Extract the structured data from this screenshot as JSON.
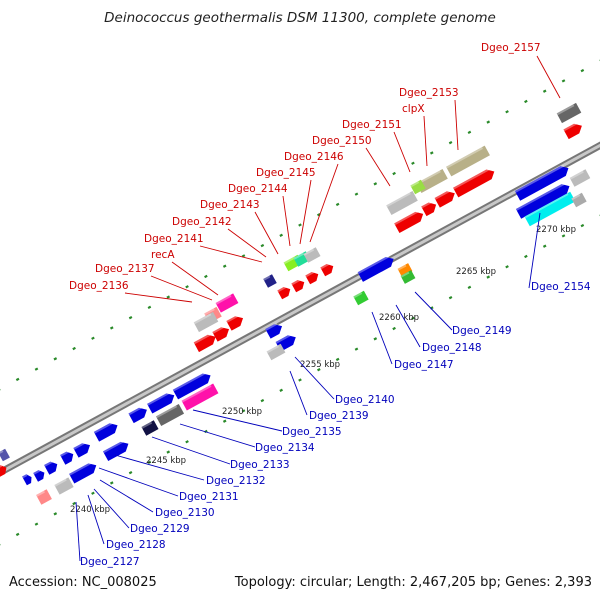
{
  "title": "Deinococcus geothermalis DSM 11300, complete genome",
  "footer": {
    "accession": "Accession: NC_008025",
    "topology": "Topology: circular; Length: 2,467,205 bp; Genes: 2,393"
  },
  "colors": {
    "top_labels": "#cc0000",
    "bottom_labels": "#0000bb",
    "backbone": "#888888",
    "ticks": "#2a8a2a"
  },
  "scale_labels": [
    "2240 kbp",
    "2245 kbp",
    "2250 kbp",
    "2255 kbp",
    "2260 kbp",
    "2265 kbp",
    "2270 kbp"
  ],
  "top_labels": [
    "Dgeo_2157",
    "Dgeo_2153",
    "clpX",
    "Dgeo_2151",
    "Dgeo_2150",
    "Dgeo_2146",
    "Dgeo_2145",
    "Dgeo_2144",
    "Dgeo_2143",
    "Dgeo_2142",
    "Dgeo_2141",
    "recA",
    "Dgeo_2137",
    "Dgeo_2136"
  ],
  "bottom_labels": [
    "Dgeo_2154",
    "Dgeo_2149",
    "Dgeo_2148",
    "Dgeo_2147",
    "Dgeo_2140",
    "Dgeo_2139",
    "Dgeo_2135",
    "Dgeo_2134",
    "Dgeo_2133",
    "Dgeo_2132",
    "Dgeo_2131",
    "Dgeo_2130",
    "Dgeo_2129",
    "Dgeo_2128",
    "Dgeo_2127"
  ]
}
